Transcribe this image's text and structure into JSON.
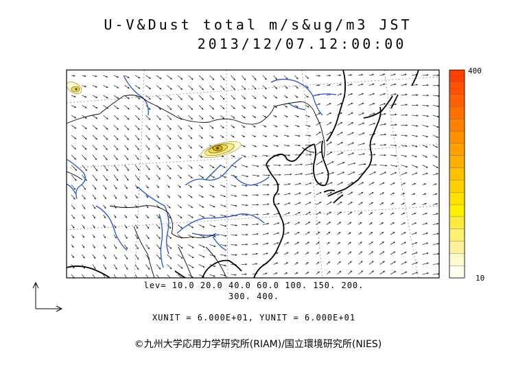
{
  "header": {
    "title_line1": "U-V&Dust total m/s&ug/m3 JST",
    "title_line2": "2013/12/07.12:00:00"
  },
  "colorbar": {
    "max_label": "400",
    "min_label": "10",
    "colors": [
      "#fffff0",
      "#fffacd",
      "#fff3a0",
      "#fff070",
      "#ffe840",
      "#fff000",
      "#ffe000",
      "#ffd000",
      "#ffc000",
      "#ffb000",
      "#ffa000",
      "#ff9000",
      "#ff8000",
      "#ff7000",
      "#ff6000",
      "#ff5000",
      "#ff4000"
    ]
  },
  "legend": {
    "levels_line1": "lev= 10.0 20.0 40.0 60.0 100. 150. 200.",
    "levels_line2": "300. 400.",
    "units_line": "XUNIT = 6.000E+01, YUNIT = 6.000E+01"
  },
  "footer": {
    "copyright": "©九州大学応用力学研究所(RIAM)/国立環境研究所(NIES)"
  },
  "map_style": {
    "coast_color": "#000000",
    "river_color": "#1e50d2",
    "border_color": "#000000",
    "grid_color": "#888888",
    "dust_colors": [
      "#fffbd0",
      "#f0e060",
      "#d4b400",
      "#a07800"
    ]
  }
}
